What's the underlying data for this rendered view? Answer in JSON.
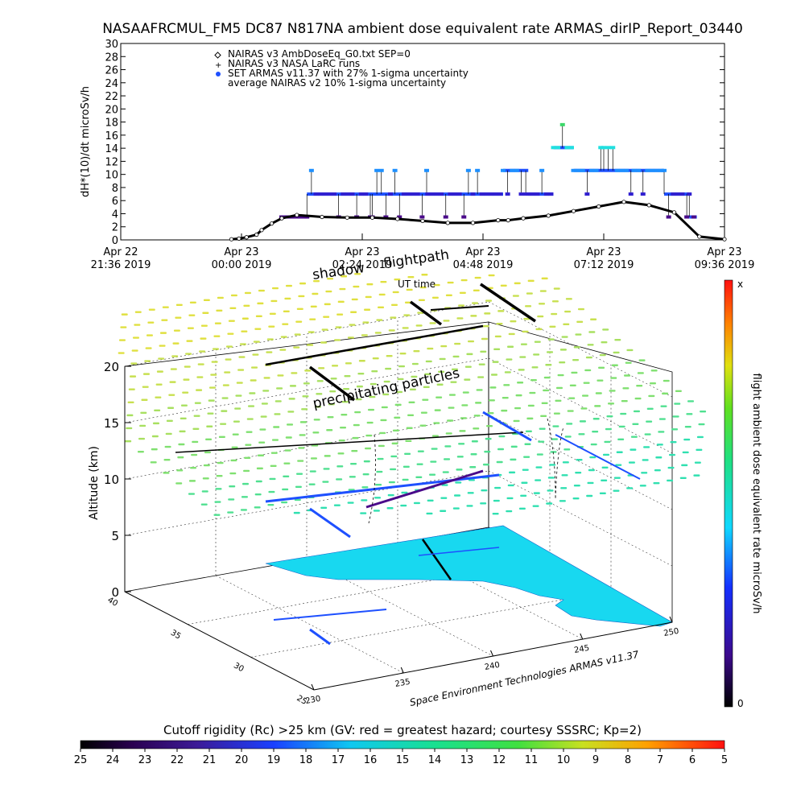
{
  "title": "NASAAFRCMUL_FM5 DC87 N817NA ambient dose equivalent rate ARMAS_dirIP_Report_03440",
  "chart_data": [
    {
      "type": "scatter",
      "ylabel": "dH*(10)/dt microSv/h",
      "ylim": [
        0,
        30
      ],
      "yticks": [
        "0",
        "2",
        "4",
        "6",
        "8",
        "10",
        "12",
        "14",
        "16",
        "18",
        "20",
        "22",
        "24",
        "26",
        "28",
        "30"
      ],
      "x_range": [
        "Apr 22 21:36 2019",
        "Apr 23 09:36 2019"
      ],
      "x_ticks": [
        {
          "l1": "Apr 22",
          "l2": "21:36 2019"
        },
        {
          "l1": "Apr 23",
          "l2": "00:00 2019"
        },
        {
          "l1": "Apr 23",
          "l2": "02:24 2019"
        },
        {
          "l1": "Apr 23",
          "l2": "04:48 2019"
        },
        {
          "l1": "Apr 23",
          "l2": "07:12 2019"
        },
        {
          "l1": "Apr 23",
          "l2": "09:36 2019"
        }
      ],
      "legend": [
        {
          "symbol": "diamond",
          "label": "NAIRAS v3 AmbDoseEq_G0.txt SEP=0"
        },
        {
          "symbol": "plus",
          "label": "NAIRAS v3 NASA LaRC runs"
        },
        {
          "symbol": "dot",
          "label": "SET ARMAS v11.37 with 27% 1-sigma uncertainty"
        },
        {
          "symbol": "none",
          "label": "average NAIRAS v2 10% 1-sigma uncertainty"
        }
      ],
      "nairas_curve": {
        "x_hours": [
          0,
          2.2,
          2.35,
          2.5,
          2.7,
          2.8,
          3.0,
          3.2,
          3.5,
          4.0,
          4.5,
          5.0,
          5.5,
          6.0,
          6.5,
          7.0,
          7.5,
          7.7,
          8.0,
          8.5,
          9.0,
          9.5,
          10.0,
          10.5,
          11.0,
          11.5,
          12.0
        ],
        "y": [
          null,
          0.1,
          0.2,
          0.4,
          0.8,
          1.5,
          2.5,
          3.3,
          3.8,
          3.5,
          3.4,
          3.4,
          3.2,
          2.9,
          2.6,
          2.6,
          3.0,
          3.0,
          3.3,
          3.7,
          4.4,
          5.1,
          5.8,
          5.3,
          4.2,
          0.5,
          0.1
        ]
      },
      "armas_levels": [
        3.5,
        7.0,
        10.6,
        14.1,
        17.6
      ]
    },
    {
      "type": "scatter",
      "zlabel": "Altitude (km)",
      "zticks": [
        "0",
        "5",
        "10",
        "15",
        "20"
      ],
      "lat_ticks": [
        "40",
        "35",
        "30",
        "25"
      ],
      "lon_ticks": [
        "230",
        "235",
        "240",
        "245",
        "250"
      ],
      "annotations": {
        "flightpath": "flightpath",
        "shadow": "shadow",
        "ut_time": "UT time",
        "precip": "precipitating particles",
        "credit": "Space Environment Technologies ARMAS v11.37"
      },
      "colorbar_right": {
        "label": "flight ambient dose equivalent rate microSv/h",
        "top": "x",
        "bottom": "0"
      }
    },
    {
      "type": "heatmap",
      "label": "Cutoff rigidity (Rc) >25 km (GV: red = greatest hazard; courtesy SSSRC; Kp=2)",
      "ticks": [
        "25",
        "24",
        "23",
        "22",
        "21",
        "20",
        "19",
        "18",
        "17",
        "16",
        "15",
        "14",
        "13",
        "12",
        "11",
        "10",
        "9",
        "8",
        "7",
        "6",
        "5"
      ]
    }
  ],
  "colors": {
    "armas_dose": "#1e50ff",
    "cyan_high": "#20e0e0",
    "green_high": "#3cd86a",
    "purple_low": "#4a0a8a",
    "surface_cyan": "#18d8f0",
    "yellow_green": "#c8e050"
  }
}
